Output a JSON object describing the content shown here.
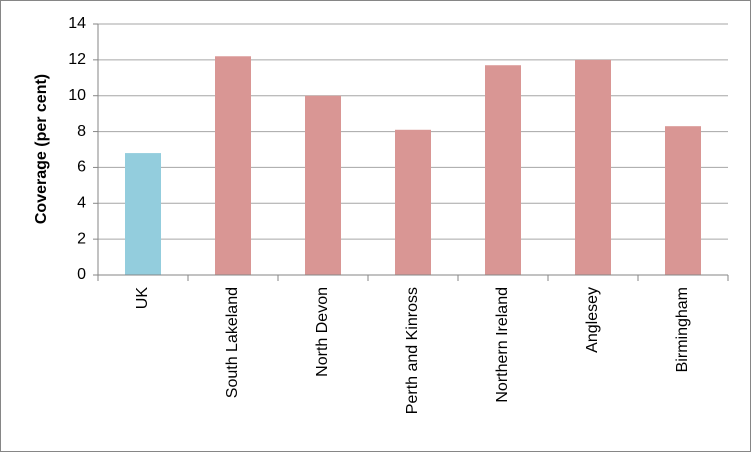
{
  "chart_data": {
    "type": "bar",
    "y_label": "Coverage (per cent)",
    "categories": [
      "UK",
      "South Lakeland",
      "North Devon",
      "Perth and Kinross",
      "Northern Ireland",
      "Anglesey",
      "Birmingham"
    ],
    "values": [
      6.8,
      12.2,
      10.0,
      8.1,
      11.7,
      12.0,
      8.3
    ],
    "colors": [
      "#93cddd",
      "#d99694",
      "#d99694",
      "#d99694",
      "#d99694",
      "#d99694",
      "#d99694"
    ],
    "ylim": [
      0,
      14
    ],
    "yticks": [
      0,
      2,
      4,
      6,
      8,
      10,
      12,
      14
    ],
    "grid": true
  }
}
